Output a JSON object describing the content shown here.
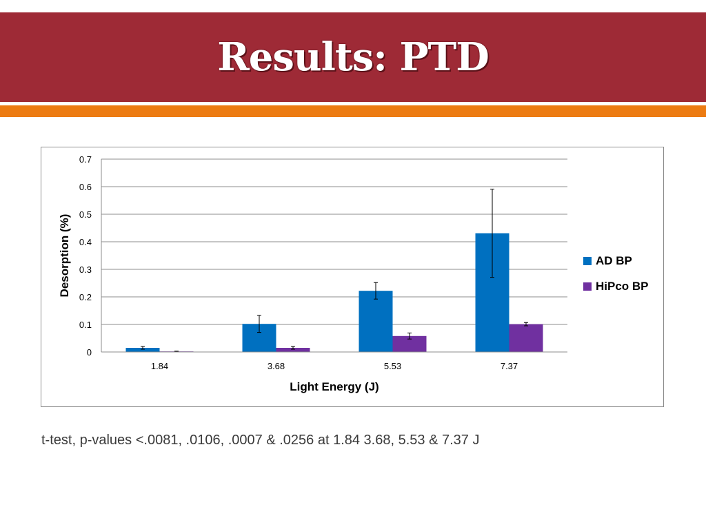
{
  "slide": {
    "title": "Results: PTD",
    "footnote": "t-test, p-values <.0081, .0106, .0007 & .0256 at 1.84 3.68, 5.53 & 7.37 J"
  },
  "colors": {
    "title_band": "#9e2a36",
    "accent_bar": "#ec7b12",
    "ad_bp": "#0070c0",
    "hipco_bp": "#7030a0"
  },
  "chart_data": {
    "type": "bar",
    "title": "",
    "xlabel": "Light Energy (J)",
    "ylabel": "Desorption (%)",
    "categories": [
      "1.84",
      "3.68",
      "5.53",
      "7.37"
    ],
    "ylim": [
      0,
      0.7
    ],
    "yticks": [
      "0",
      "0.1",
      "0.2",
      "0.3",
      "0.4",
      "0.5",
      "0.6",
      "0.7"
    ],
    "grid": true,
    "legend_position": "right",
    "series": [
      {
        "name": "AD BP",
        "color": "#0070c0",
        "values": [
          0.015,
          0.102,
          0.222,
          0.431
        ],
        "errors": [
          0.005,
          0.031,
          0.03,
          0.16
        ]
      },
      {
        "name": "HiPco BP",
        "color": "#7030a0",
        "values": [
          0.002,
          0.015,
          0.058,
          0.101
        ],
        "errors": [
          0.001,
          0.005,
          0.011,
          0.006
        ]
      }
    ]
  }
}
